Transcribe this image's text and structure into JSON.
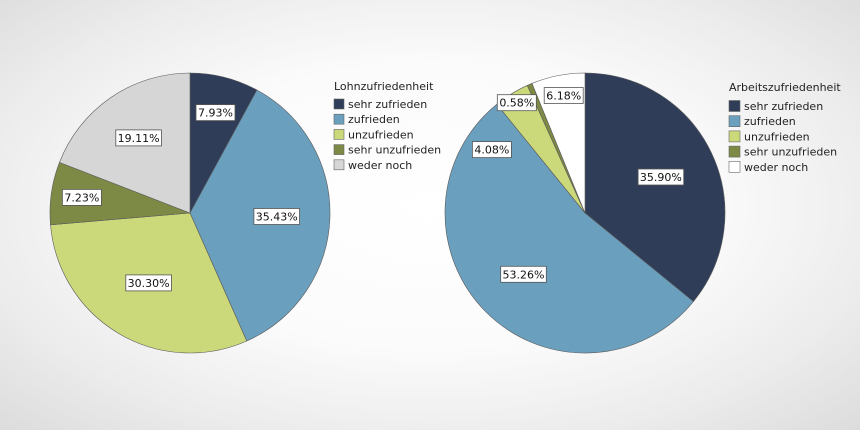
{
  "chart_data": [
    {
      "type": "pie",
      "legend_title": "Lohnzufriedenheit",
      "legend_position": "right",
      "start_angle_deg": 0,
      "direction": "clockwise",
      "slices": [
        {
          "label": "sehr zufrieden",
          "value": 7.93,
          "value_label": "7.93%",
          "color": "#2f3d58"
        },
        {
          "label": "zufrieden",
          "value": 35.43,
          "value_label": "35.43%",
          "color": "#6a9fbe"
        },
        {
          "label": "unzufrieden",
          "value": 30.3,
          "value_label": "30.30%",
          "color": "#ccd97a"
        },
        {
          "label": "sehr unzufrieden",
          "value": 7.23,
          "value_label": "7.23%",
          "color": "#7d8a46"
        },
        {
          "label": "weder noch",
          "value": 19.11,
          "value_label": "19.11%",
          "color": "#d6d6d6"
        }
      ]
    },
    {
      "type": "pie",
      "legend_title": "Arbeitszufriedenheit",
      "legend_position": "right",
      "start_angle_deg": 0,
      "direction": "clockwise",
      "slices": [
        {
          "label": "sehr zufrieden",
          "value": 35.9,
          "value_label": "35.90%",
          "color": "#2f3d58"
        },
        {
          "label": "zufrieden",
          "value": 53.26,
          "value_label": "53.26%",
          "color": "#6a9fbe"
        },
        {
          "label": "unzufrieden",
          "value": 4.08,
          "value_label": "4.08%",
          "color": "#ccd97a"
        },
        {
          "label": "sehr unzufrieden",
          "value": 0.58,
          "value_label": "0.58%",
          "color": "#7d8a46"
        },
        {
          "label": "weder noch",
          "value": 6.18,
          "value_label": "6.18%",
          "color": "#ffffff"
        }
      ]
    }
  ]
}
